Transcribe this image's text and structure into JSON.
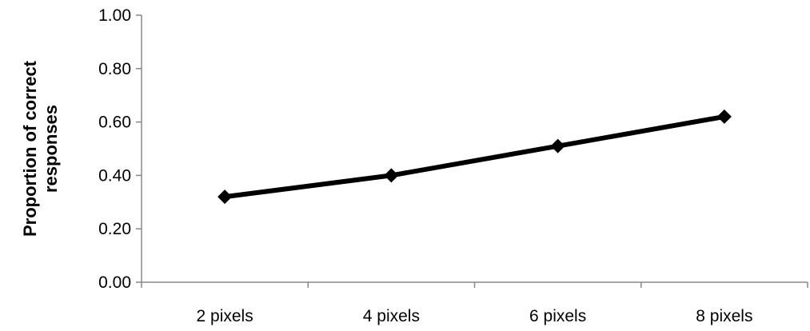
{
  "chart_data": {
    "type": "line",
    "title": "",
    "xlabel": "",
    "ylabel_lines": [
      "Proportion of correct",
      "responses"
    ],
    "categories": [
      "2 pixels",
      "4 pixels",
      "6 pixels",
      "8 pixels"
    ],
    "series": [
      {
        "values": [
          0.32,
          0.4,
          0.51,
          0.62
        ],
        "color": "#000000",
        "marker": "diamond"
      }
    ],
    "ylim": [
      0,
      1
    ],
    "yticks": [
      0,
      0.2,
      0.4,
      0.6,
      0.8,
      1.0
    ],
    "ytick_labels": [
      "0.00",
      "0.20",
      "0.40",
      "0.60",
      "0.80",
      "1.00"
    ],
    "grid": false,
    "legend": "none"
  }
}
